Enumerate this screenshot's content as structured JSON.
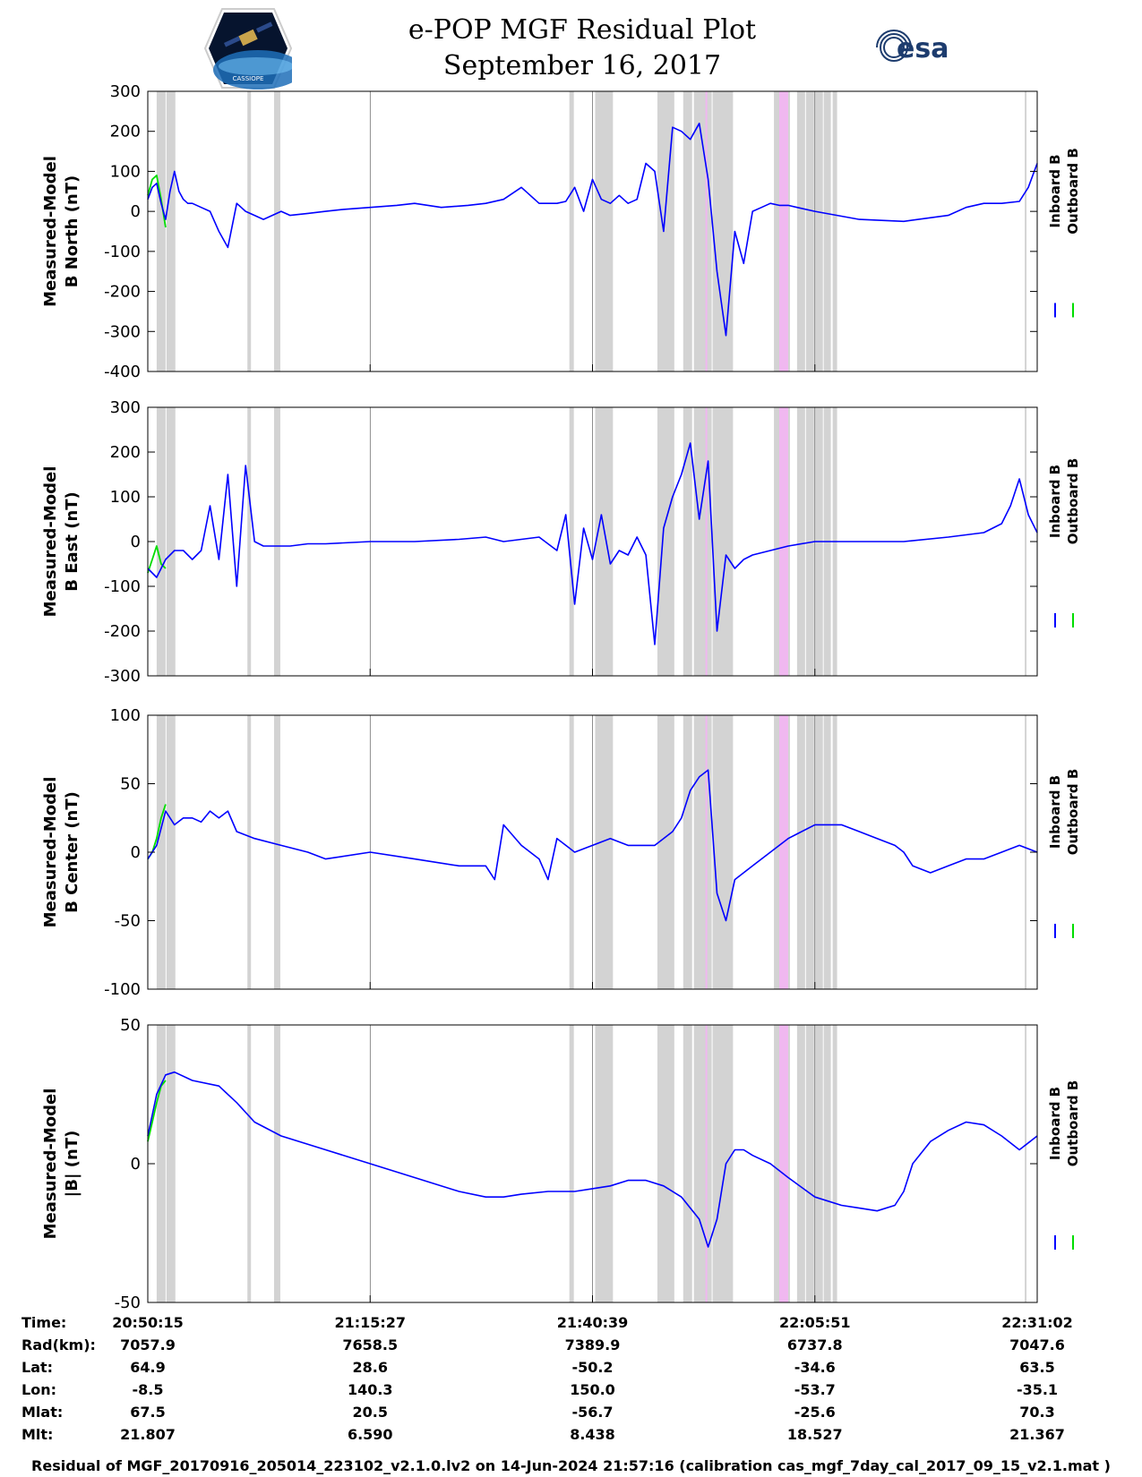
{
  "title": {
    "line1": "e-POP MGF Residual Plot",
    "line2": "September 16, 2017"
  },
  "logos": {
    "left": "cassiope-mission-logo",
    "left_text": "CASSIOPE",
    "right": "esa-logo",
    "right_text": "esa"
  },
  "colors": {
    "inboard": "#0000ff",
    "outboard": "#00dd00",
    "gap_shading": "#d3d3d3",
    "gap_highlight": "#f0b8f0",
    "gridline": "#d0d0d0"
  },
  "legend": {
    "inboard": "Inboard B",
    "outboard": "Outboard B"
  },
  "chart_data": [
    {
      "type": "line",
      "ylabel_line1": "Measured-Model",
      "ylabel_line2": "B North (nT)",
      "ylim": [
        -400,
        300
      ],
      "yticks": [
        300,
        200,
        100,
        0,
        -100,
        -200,
        -300,
        -400
      ],
      "ytick_labels": [
        "300",
        "200",
        "100",
        "0",
        "-100",
        "-200",
        "-300",
        "-400"
      ],
      "xlim": [
        0,
        100
      ],
      "grid": "vertical lines at x-tick times",
      "series": [
        {
          "name": "Inboard B",
          "x": [
            0,
            0.5,
            1,
            1.5,
            2,
            2.5,
            3,
            3.5,
            4,
            4.5,
            5,
            6,
            7,
            8,
            9,
            10,
            11,
            12,
            13,
            14,
            15,
            16,
            18,
            20,
            22,
            25,
            28,
            30,
            33,
            36,
            38,
            40,
            42,
            44,
            45,
            46,
            47,
            48,
            49,
            50,
            51,
            52,
            53,
            54,
            55,
            56,
            57,
            58,
            59,
            60,
            61,
            62,
            63,
            64,
            65,
            66,
            67,
            68,
            69,
            70,
            71,
            72,
            73,
            75,
            80,
            85,
            90,
            92,
            94,
            96,
            98,
            99,
            100
          ],
          "values": [
            30,
            60,
            70,
            20,
            -20,
            50,
            100,
            50,
            30,
            20,
            20,
            10,
            0,
            -50,
            -90,
            20,
            0,
            -10,
            -20,
            -10,
            0,
            -10,
            -5,
            0,
            5,
            10,
            15,
            20,
            10,
            15,
            20,
            30,
            60,
            20,
            20,
            20,
            25,
            60,
            0,
            80,
            30,
            20,
            40,
            20,
            30,
            120,
            100,
            -50,
            210,
            200,
            180,
            220,
            80,
            -150,
            -310,
            -50,
            -130,
            0,
            10,
            20,
            15,
            15,
            10,
            0,
            -20,
            -25,
            -10,
            10,
            20,
            20,
            25,
            60,
            120
          ]
        },
        {
          "name": "Outboard B",
          "x": [
            0,
            0.5,
            1,
            1.5,
            2
          ],
          "values": [
            40,
            80,
            90,
            30,
            -40
          ]
        }
      ]
    },
    {
      "type": "line",
      "ylabel_line1": "Measured-Model",
      "ylabel_line2": "B East (nT)",
      "ylim": [
        -300,
        300
      ],
      "yticks": [
        300,
        200,
        100,
        0,
        -100,
        -200,
        -300
      ],
      "ytick_labels": [
        "300",
        "200",
        "100",
        "0",
        "-100",
        "-200",
        "-300"
      ],
      "xlim": [
        0,
        100
      ],
      "series": [
        {
          "name": "Inboard B",
          "x": [
            0,
            1,
            2,
            3,
            4,
            5,
            6,
            7,
            8,
            9,
            10,
            11,
            12,
            13,
            14,
            16,
            18,
            20,
            25,
            30,
            35,
            38,
            40,
            42,
            44,
            46,
            47,
            48,
            49,
            50,
            51,
            52,
            53,
            54,
            55,
            56,
            57,
            58,
            59,
            60,
            61,
            62,
            63,
            64,
            65,
            66,
            67,
            68,
            70,
            72,
            75,
            80,
            85,
            90,
            94,
            96,
            97,
            98,
            99,
            100
          ],
          "values": [
            -60,
            -80,
            -40,
            -20,
            -20,
            -40,
            -20,
            80,
            -40,
            150,
            -100,
            170,
            0,
            -10,
            -10,
            -10,
            -5,
            -5,
            0,
            0,
            5,
            10,
            0,
            5,
            10,
            -20,
            60,
            -140,
            30,
            -40,
            60,
            -50,
            -20,
            -30,
            10,
            -30,
            -230,
            30,
            100,
            150,
            220,
            50,
            180,
            -200,
            -30,
            -60,
            -40,
            -30,
            -20,
            -10,
            0,
            0,
            0,
            10,
            20,
            40,
            80,
            140,
            60,
            20
          ]
        },
        {
          "name": "Outboard B",
          "x": [
            0,
            0.5,
            1,
            1.5,
            2
          ],
          "values": [
            -70,
            -40,
            -10,
            -50,
            -60
          ]
        }
      ]
    },
    {
      "type": "line",
      "ylabel_line1": "Measured-Model",
      "ylabel_line2": "B Center (nT)",
      "ylim": [
        -100,
        100
      ],
      "yticks": [
        100,
        50,
        0,
        -50,
        -100
      ],
      "ytick_labels": [
        "100",
        "50",
        "0",
        "-50",
        "-100"
      ],
      "xlim": [
        0,
        100
      ],
      "series": [
        {
          "name": "Inboard B",
          "x": [
            0,
            1,
            2,
            3,
            4,
            5,
            6,
            7,
            8,
            9,
            10,
            12,
            15,
            18,
            20,
            25,
            30,
            35,
            38,
            39,
            40,
            42,
            44,
            45,
            46,
            48,
            50,
            52,
            54,
            55,
            56,
            57,
            58,
            59,
            60,
            61,
            62,
            63,
            64,
            65,
            66,
            68,
            70,
            72,
            75,
            78,
            80,
            82,
            84,
            85,
            86,
            88,
            90,
            92,
            94,
            96,
            98,
            100
          ],
          "values": [
            -5,
            5,
            30,
            20,
            25,
            25,
            22,
            30,
            25,
            30,
            15,
            10,
            5,
            0,
            -5,
            0,
            -5,
            -10,
            -10,
            -20,
            20,
            5,
            -5,
            -20,
            10,
            0,
            5,
            10,
            5,
            5,
            5,
            5,
            10,
            15,
            25,
            45,
            55,
            60,
            -30,
            -50,
            -20,
            -10,
            0,
            10,
            20,
            20,
            15,
            10,
            5,
            0,
            -10,
            -15,
            -10,
            -5,
            -5,
            0,
            5,
            0
          ]
        },
        {
          "name": "Outboard B",
          "x": [
            0,
            0.5,
            1,
            1.5,
            2
          ],
          "values": [
            -5,
            0,
            10,
            25,
            35
          ]
        }
      ]
    },
    {
      "type": "line",
      "ylabel_line1": "Measured-Model",
      "ylabel_line2": "|B| (nT)",
      "ylim": [
        -50,
        50
      ],
      "yticks": [
        50,
        0,
        -50
      ],
      "ytick_labels": [
        "50",
        "0",
        "-50"
      ],
      "xlim": [
        0,
        100
      ],
      "series": [
        {
          "name": "Inboard B",
          "x": [
            0,
            1,
            2,
            3,
            5,
            8,
            10,
            12,
            15,
            20,
            25,
            30,
            35,
            38,
            40,
            42,
            45,
            48,
            50,
            52,
            54,
            56,
            58,
            60,
            62,
            63,
            64,
            65,
            66,
            67,
            68,
            70,
            72,
            75,
            78,
            80,
            82,
            84,
            85,
            86,
            88,
            90,
            92,
            94,
            96,
            98,
            100
          ],
          "values": [
            10,
            25,
            32,
            33,
            30,
            28,
            22,
            15,
            10,
            5,
            0,
            -5,
            -10,
            -12,
            -12,
            -11,
            -10,
            -10,
            -9,
            -8,
            -6,
            -6,
            -8,
            -12,
            -20,
            -30,
            -20,
            0,
            5,
            5,
            3,
            0,
            -5,
            -12,
            -15,
            -16,
            -17,
            -15,
            -10,
            0,
            8,
            12,
            15,
            14,
            10,
            5,
            10
          ]
        },
        {
          "name": "Outboard B",
          "x": [
            0,
            0.5,
            1,
            1.5,
            2
          ],
          "values": [
            8,
            15,
            22,
            28,
            30
          ]
        }
      ]
    }
  ],
  "gaps": {
    "gray": [
      [
        1.0,
        2.0
      ],
      [
        2.1,
        3.1
      ],
      [
        11.2,
        11.6
      ],
      [
        14.2,
        14.9
      ],
      [
        47.4,
        47.9
      ],
      [
        50.3,
        52.3
      ],
      [
        57.3,
        59.2
      ],
      [
        60.2,
        61.2
      ],
      [
        61.4,
        63.4
      ],
      [
        63.5,
        65.8
      ],
      [
        70.4,
        72.2
      ],
      [
        73.0,
        73.9
      ],
      [
        74.0,
        74.9
      ],
      [
        75.0,
        75.9
      ],
      [
        76.0,
        76.8
      ],
      [
        77.0,
        77.5
      ],
      [
        98.6,
        98.8
      ]
    ],
    "pink": [
      [
        62.7,
        62.9
      ],
      [
        71.0,
        72.0
      ]
    ]
  },
  "xtick_positions": [
    0,
    25,
    50,
    75,
    100
  ],
  "info_table": {
    "labels": [
      "Time:",
      "Rad(km):",
      "Lat:",
      "Lon:",
      "Mlat:",
      "Mlt:"
    ],
    "columns": [
      [
        "20:50:15",
        "7057.9",
        "64.9",
        "-8.5",
        "67.5",
        "21.807"
      ],
      [
        "21:15:27",
        "7658.5",
        "28.6",
        "140.3",
        "20.5",
        "6.590"
      ],
      [
        "21:40:39",
        "7389.9",
        "-50.2",
        "150.0",
        "-56.7",
        "8.438"
      ],
      [
        "22:05:51",
        "6737.8",
        "-34.6",
        "-53.7",
        "-25.6",
        "18.527"
      ],
      [
        "22:31:02",
        "7047.6",
        "63.5",
        "-35.1",
        "70.3",
        "21.367"
      ]
    ]
  },
  "footer": "Residual of MGF_20170916_205014_223102_v2.1.0.lv2 on 14-Jun-2024 21:57:16 (calibration cas_mgf_7day_cal_2017_09_15_v2.1.mat )"
}
